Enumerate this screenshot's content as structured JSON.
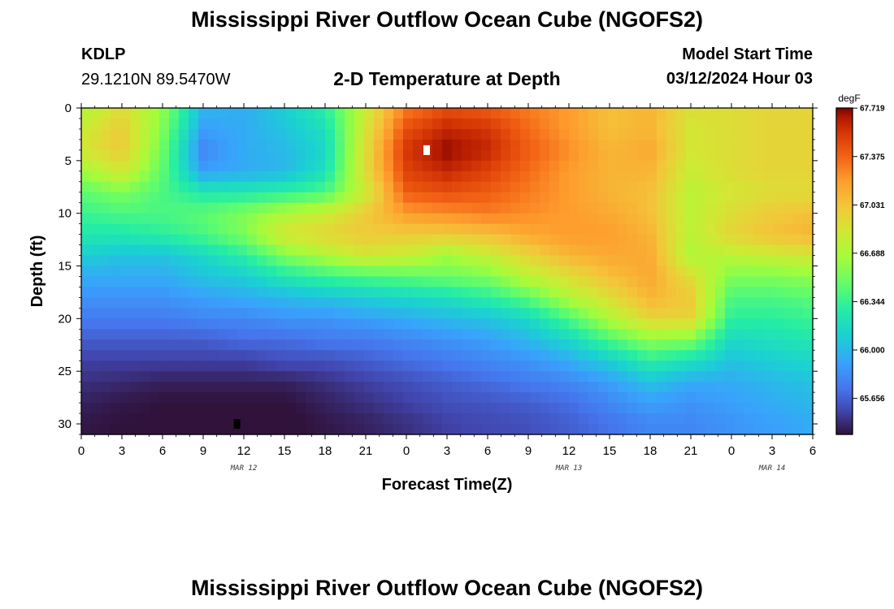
{
  "header": {
    "title": "Mississippi River Outflow Ocean Cube (NGOFS2)",
    "footer_title": "Mississippi River Outflow Ocean Cube (NGOFS2)",
    "station_id": "KDLP",
    "station_coords": "29.1210N  89.5470W",
    "subtitle": "2-D Temperature at Depth",
    "model_start_label": "Model Start Time",
    "model_start_value": "03/12/2024 Hour 03"
  },
  "chart_data": {
    "type": "heatmap",
    "title": "2-D Temperature at Depth",
    "xlabel": "Forecast Time(Z)",
    "ylabel": "Depth (ft)",
    "x_ticks": [
      0,
      3,
      6,
      9,
      12,
      15,
      18,
      21,
      24,
      27,
      30,
      33,
      36,
      39,
      42,
      45,
      48,
      51,
      54
    ],
    "x_tick_labels": [
      "0",
      "3",
      "6",
      "9",
      "12",
      "15",
      "18",
      "21",
      "0",
      "3",
      "6",
      "9",
      "12",
      "15",
      "18",
      "21",
      "0",
      "3",
      "6"
    ],
    "date_labels": [
      {
        "label": "MAR 12",
        "x": 12
      },
      {
        "label": "MAR 13",
        "x": 36
      },
      {
        "label": "MAR 14",
        "x": 51
      }
    ],
    "xlim": [
      0,
      54
    ],
    "y_ticks": [
      0,
      5,
      10,
      15,
      20,
      25,
      30
    ],
    "ylim": [
      0,
      31
    ],
    "y_inverted": true,
    "units": "degF",
    "colorbar_ticks": [
      67.719,
      67.375,
      67.031,
      66.688,
      66.344,
      66.0,
      65.656
    ],
    "vmin": 65.4,
    "vmax": 67.72,
    "max_marker": {
      "x": 25.5,
      "y": 4
    },
    "min_marker": {
      "x": 11.5,
      "y": 30
    },
    "grid": {
      "x": [
        0,
        3,
        6,
        9,
        12,
        15,
        18,
        21,
        24,
        27,
        30,
        33,
        36,
        39,
        42,
        45,
        48,
        51,
        54
      ],
      "y": [
        0,
        2,
        4,
        6,
        8,
        10,
        12,
        14,
        16,
        18,
        20,
        22,
        24,
        26,
        28,
        30,
        31
      ],
      "values": [
        [
          66.7,
          66.9,
          66.6,
          66.0,
          65.95,
          66.1,
          66.3,
          66.8,
          67.3,
          67.45,
          67.4,
          67.3,
          67.2,
          67.05,
          67.1,
          66.9,
          66.9,
          66.95,
          66.95
        ],
        [
          66.8,
          67.0,
          66.55,
          65.9,
          65.95,
          66.05,
          66.2,
          66.85,
          67.45,
          67.6,
          67.55,
          67.35,
          67.2,
          67.05,
          67.1,
          66.85,
          66.9,
          66.95,
          66.95
        ],
        [
          66.85,
          67.0,
          66.5,
          65.8,
          65.95,
          66.0,
          66.15,
          66.9,
          67.55,
          67.7,
          67.6,
          67.4,
          67.25,
          67.1,
          67.15,
          66.85,
          66.9,
          66.95,
          66.95
        ],
        [
          66.65,
          66.85,
          66.45,
          65.9,
          65.95,
          66.0,
          66.2,
          66.9,
          67.5,
          67.6,
          67.5,
          67.35,
          67.2,
          67.1,
          67.1,
          66.8,
          66.9,
          66.95,
          66.95
        ],
        [
          66.45,
          66.55,
          66.4,
          66.25,
          66.25,
          66.3,
          66.4,
          66.8,
          67.4,
          67.45,
          67.4,
          67.3,
          67.2,
          67.1,
          67.05,
          66.75,
          66.85,
          66.9,
          66.9
        ],
        [
          66.35,
          66.4,
          66.4,
          66.45,
          66.55,
          66.7,
          66.8,
          67.0,
          67.2,
          67.25,
          67.3,
          67.25,
          67.2,
          67.15,
          67.05,
          66.75,
          66.9,
          67.0,
          67.05
        ],
        [
          66.25,
          66.25,
          66.3,
          66.4,
          66.55,
          66.85,
          66.95,
          67.0,
          67.0,
          67.0,
          67.05,
          67.15,
          67.2,
          67.2,
          67.1,
          66.75,
          66.95,
          67.05,
          67.1
        ],
        [
          66.1,
          66.05,
          66.05,
          66.15,
          66.3,
          66.55,
          66.7,
          66.85,
          66.8,
          66.65,
          66.8,
          66.95,
          67.1,
          67.15,
          67.15,
          66.7,
          66.75,
          66.8,
          66.85
        ],
        [
          65.95,
          65.95,
          65.95,
          66.05,
          66.1,
          66.25,
          66.35,
          66.4,
          66.45,
          66.5,
          66.55,
          66.75,
          66.9,
          67.05,
          67.15,
          66.9,
          66.55,
          66.55,
          66.6
        ],
        [
          65.85,
          65.85,
          65.85,
          65.9,
          65.95,
          66.0,
          66.05,
          66.1,
          66.15,
          66.2,
          66.3,
          66.45,
          66.7,
          66.9,
          67.1,
          67.0,
          66.4,
          66.4,
          66.45
        ],
        [
          65.75,
          65.75,
          65.75,
          65.8,
          65.8,
          65.85,
          65.85,
          65.9,
          65.95,
          66.0,
          66.05,
          66.15,
          66.4,
          66.7,
          66.95,
          66.95,
          66.3,
          66.3,
          66.35
        ],
        [
          65.65,
          65.65,
          65.65,
          65.65,
          65.7,
          65.7,
          65.75,
          65.75,
          65.8,
          65.85,
          65.9,
          66.0,
          66.15,
          66.4,
          66.6,
          66.55,
          66.15,
          66.2,
          66.25
        ],
        [
          65.55,
          65.55,
          65.55,
          65.55,
          65.55,
          65.6,
          65.6,
          65.65,
          65.7,
          65.75,
          65.8,
          65.85,
          65.95,
          66.1,
          66.3,
          66.2,
          66.05,
          66.1,
          66.15
        ],
        [
          65.5,
          65.48,
          65.45,
          65.45,
          65.45,
          65.45,
          65.5,
          65.55,
          65.6,
          65.65,
          65.7,
          65.75,
          65.8,
          65.9,
          66.05,
          65.95,
          65.95,
          66.0,
          66.05
        ],
        [
          65.45,
          65.42,
          65.4,
          65.4,
          65.4,
          65.4,
          65.45,
          65.5,
          65.55,
          65.6,
          65.62,
          65.65,
          65.7,
          65.8,
          65.9,
          65.85,
          65.9,
          65.95,
          66.0
        ],
        [
          65.42,
          65.4,
          65.4,
          65.38,
          65.37,
          65.38,
          65.42,
          65.45,
          65.5,
          65.55,
          65.58,
          65.6,
          65.65,
          65.72,
          65.8,
          65.8,
          65.85,
          65.9,
          65.95
        ],
        [
          65.42,
          65.4,
          65.4,
          65.38,
          65.37,
          65.38,
          65.42,
          65.45,
          65.5,
          65.55,
          65.58,
          65.6,
          65.65,
          65.72,
          65.8,
          65.8,
          65.85,
          65.9,
          65.95
        ]
      ]
    }
  }
}
